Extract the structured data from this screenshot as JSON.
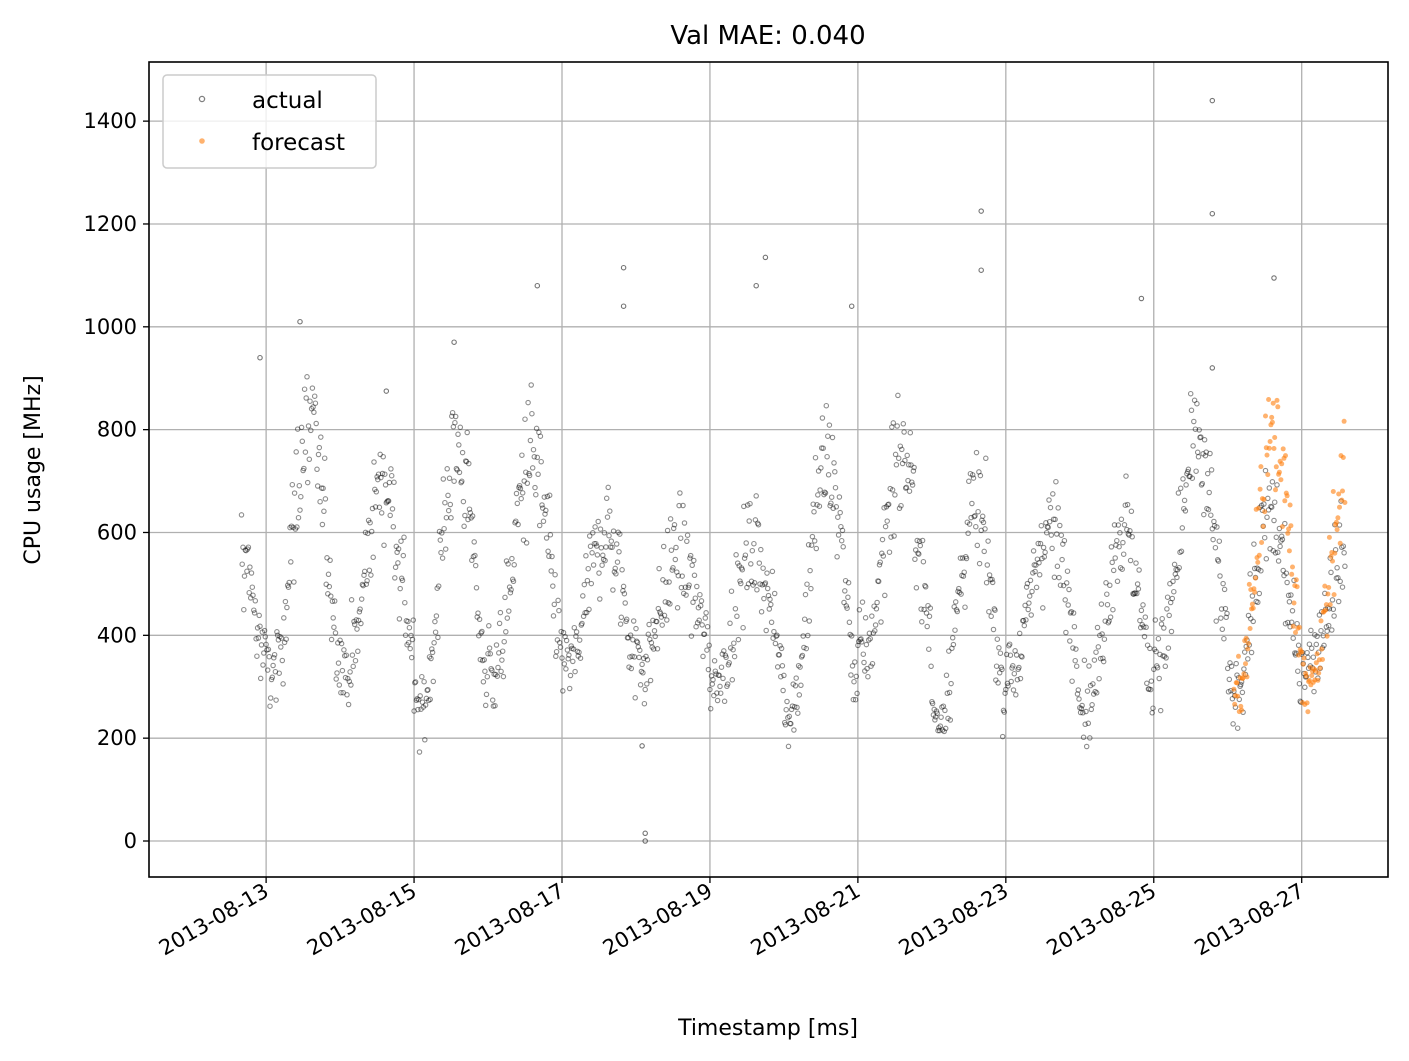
{
  "chart_data": {
    "type": "scatter",
    "title": "Val MAE: 0.040",
    "xlabel": "Timestamp [ms]",
    "ylabel": "CPU usage [MHz]",
    "x_type": "date",
    "xlim": [
      "2013-08-11 10:00",
      "2013-08-28 04:00"
    ],
    "ylim": [
      -70,
      1515
    ],
    "x_ticks": [
      "2013-08-13",
      "2013-08-15",
      "2013-08-17",
      "2013-08-19",
      "2013-08-21",
      "2013-08-23",
      "2013-08-25",
      "2013-08-27"
    ],
    "y_ticks": [
      0,
      200,
      400,
      600,
      800,
      1000,
      1200,
      1400
    ],
    "grid": true,
    "legend": {
      "position": "top-left"
    },
    "series": [
      {
        "name": "actual",
        "color": "#000000",
        "marker": "hollow-circle",
        "x_start": "2013-08-12 16:00",
        "x_end": "2013-08-27 14:00",
        "x_step_minutes": 15,
        "daily_mean_hour_of_peak": 14,
        "daily_low_range": [
          220,
          380
        ],
        "daily_high_range": [
          500,
          800
        ],
        "outliers": [
          {
            "x": "2013-08-12 22:00",
            "y": 940
          },
          {
            "x": "2013-08-13 11:00",
            "y": 1010
          },
          {
            "x": "2013-08-14 15:00",
            "y": 875
          },
          {
            "x": "2013-08-15 13:00",
            "y": 970
          },
          {
            "x": "2013-08-16 16:00",
            "y": 1080
          },
          {
            "x": "2013-08-17 20:00",
            "y": 1115
          },
          {
            "x": "2013-08-17 20:00",
            "y": 1040
          },
          {
            "x": "2013-08-18 03:00",
            "y": 15
          },
          {
            "x": "2013-08-18 03:00",
            "y": 0
          },
          {
            "x": "2013-08-18 02:00",
            "y": 185
          },
          {
            "x": "2013-08-19 18:00",
            "y": 1135
          },
          {
            "x": "2013-08-19 15:00",
            "y": 1080
          },
          {
            "x": "2013-08-20 22:00",
            "y": 1040
          },
          {
            "x": "2013-08-22 16:00",
            "y": 1225
          },
          {
            "x": "2013-08-22 16:00",
            "y": 1110
          },
          {
            "x": "2013-08-24 20:00",
            "y": 1055
          },
          {
            "x": "2013-08-25 19:00",
            "y": 1440
          },
          {
            "x": "2013-08-25 19:00",
            "y": 1220
          },
          {
            "x": "2013-08-25 19:00",
            "y": 920
          },
          {
            "x": "2013-08-26 15:00",
            "y": 1095
          }
        ]
      },
      {
        "name": "forecast",
        "color": "#ff7f0e",
        "marker": "filled-circle",
        "x_start": "2013-08-26 02:00",
        "x_end": "2013-08-27 14:00",
        "x_step_minutes": 15,
        "daily_low_range": [
          260,
          330
        ],
        "daily_high_range": [
          700,
          980
        ]
      }
    ]
  }
}
